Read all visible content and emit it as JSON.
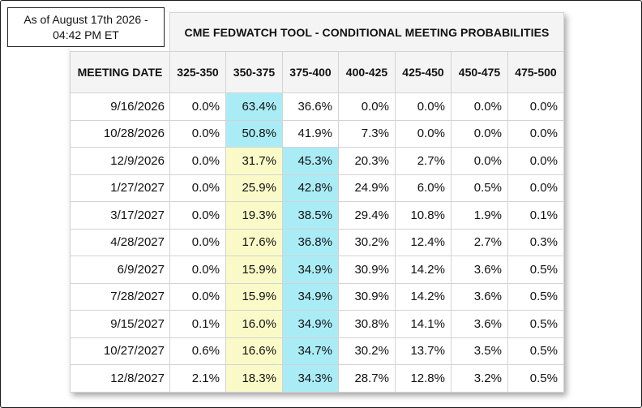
{
  "as_of": {
    "line1": "As of August 17th 2026 -",
    "line2": "04:42 PM ET"
  },
  "table": {
    "title": "CME FEDWATCH TOOL - CONDITIONAL MEETING PROBABILITIES",
    "columns": [
      "MEETING DATE",
      "325-350",
      "350-375",
      "375-400",
      "400-425",
      "425-450",
      "450-475",
      "475-500"
    ],
    "rows": [
      {
        "date": "9/16/2026",
        "values": [
          "0.0%",
          "63.4%",
          "36.6%",
          "0.0%",
          "0.0%",
          "0.0%",
          "0.0%"
        ],
        "highlights": [
          "",
          "cyan",
          "",
          "",
          "",
          "",
          ""
        ]
      },
      {
        "date": "10/28/2026",
        "values": [
          "0.0%",
          "50.8%",
          "41.9%",
          "7.3%",
          "0.0%",
          "0.0%",
          "0.0%"
        ],
        "highlights": [
          "",
          "cyan",
          "",
          "",
          "",
          "",
          ""
        ]
      },
      {
        "date": "12/9/2026",
        "values": [
          "0.0%",
          "31.7%",
          "45.3%",
          "20.3%",
          "2.7%",
          "0.0%",
          "0.0%"
        ],
        "highlights": [
          "",
          "yellow",
          "cyan",
          "",
          "",
          "",
          ""
        ]
      },
      {
        "date": "1/27/2027",
        "values": [
          "0.0%",
          "25.9%",
          "42.8%",
          "24.9%",
          "6.0%",
          "0.5%",
          "0.0%"
        ],
        "highlights": [
          "",
          "yellow",
          "cyan",
          "",
          "",
          "",
          ""
        ]
      },
      {
        "date": "3/17/2027",
        "values": [
          "0.0%",
          "19.3%",
          "38.5%",
          "29.4%",
          "10.8%",
          "1.9%",
          "0.1%"
        ],
        "highlights": [
          "",
          "yellow",
          "cyan",
          "",
          "",
          "",
          ""
        ]
      },
      {
        "date": "4/28/2027",
        "values": [
          "0.0%",
          "17.6%",
          "36.8%",
          "30.2%",
          "12.4%",
          "2.7%",
          "0.3%"
        ],
        "highlights": [
          "",
          "yellow",
          "cyan",
          "",
          "",
          "",
          ""
        ]
      },
      {
        "date": "6/9/2027",
        "values": [
          "0.0%",
          "15.9%",
          "34.9%",
          "30.9%",
          "14.2%",
          "3.6%",
          "0.5%"
        ],
        "highlights": [
          "",
          "yellow",
          "cyan",
          "",
          "",
          "",
          ""
        ]
      },
      {
        "date": "7/28/2027",
        "values": [
          "0.0%",
          "15.9%",
          "34.9%",
          "30.9%",
          "14.2%",
          "3.6%",
          "0.5%"
        ],
        "highlights": [
          "",
          "yellow",
          "cyan",
          "",
          "",
          "",
          ""
        ]
      },
      {
        "date": "9/15/2027",
        "values": [
          "0.1%",
          "16.0%",
          "34.9%",
          "30.8%",
          "14.1%",
          "3.6%",
          "0.5%"
        ],
        "highlights": [
          "",
          "yellow",
          "cyan",
          "",
          "",
          "",
          ""
        ]
      },
      {
        "date": "10/27/2027",
        "values": [
          "0.6%",
          "16.6%",
          "34.7%",
          "30.2%",
          "13.7%",
          "3.5%",
          "0.5%"
        ],
        "highlights": [
          "",
          "yellow",
          "cyan",
          "",
          "",
          "",
          ""
        ]
      },
      {
        "date": "12/8/2027",
        "values": [
          "2.1%",
          "18.3%",
          "34.3%",
          "28.7%",
          "12.8%",
          "3.2%",
          "0.5%"
        ],
        "highlights": [
          "",
          "yellow",
          "cyan",
          "",
          "",
          "",
          ""
        ]
      }
    ]
  },
  "colors": {
    "highlight_yellow": "#fafac8",
    "highlight_cyan": "#aaecf6",
    "header_bg": "#f4f4f4"
  }
}
